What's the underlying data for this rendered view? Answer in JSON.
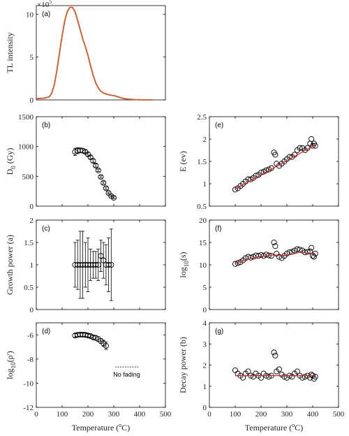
{
  "chart_data": [
    {
      "id": "a",
      "type": "line",
      "panel_label": "(a)",
      "ylabel": "TL intensity",
      "xlabel": "",
      "xlim": [
        0,
        500
      ],
      "ylim": [
        0,
        11
      ],
      "xticks": [],
      "yticks": [
        0,
        5,
        10
      ],
      "exponent_label": "×10",
      "exponent_power": "5",
      "series": [
        {
          "color": "#d2541e",
          "x": [
            0,
            30,
            50,
            60,
            70,
            80,
            90,
            100,
            110,
            120,
            130,
            140,
            150,
            160,
            170,
            180,
            190,
            200,
            210,
            220,
            230,
            240,
            250,
            260,
            270,
            280,
            290,
            300,
            310,
            320,
            340,
            360,
            380,
            400,
            420,
            450
          ],
          "y": [
            0.15,
            0.2,
            0.35,
            0.8,
            1.8,
            3.5,
            5.5,
            7.5,
            9.2,
            10.3,
            10.8,
            10.8,
            10.3,
            9.3,
            8.2,
            7.1,
            6.2,
            5.2,
            4.0,
            2.9,
            2.0,
            1.4,
            1.0,
            0.8,
            0.7,
            0.6,
            0.55,
            0.5,
            0.42,
            0.32,
            0.15,
            0.08,
            0.04,
            0.02,
            0.01,
            0.0
          ]
        }
      ]
    },
    {
      "id": "b",
      "type": "scatter",
      "panel_label": "(b)",
      "ylabel_main": "D",
      "ylabel_sub": "0",
      "ylabel_rest": " (Gy)",
      "xlabel": "",
      "xlim": [
        0,
        500
      ],
      "ylim": [
        0,
        1500
      ],
      "xticks": [
        0,
        100,
        200,
        300,
        400,
        500
      ],
      "show_xticklabels": false,
      "yticks": [
        0,
        500,
        1000,
        1500
      ],
      "series": [
        {
          "x": [
            150,
            160,
            170,
            180,
            190,
            200,
            210,
            220,
            230,
            240,
            250,
            260,
            270,
            280,
            290,
            300
          ],
          "y": [
            910,
            930,
            935,
            930,
            910,
            870,
            820,
            760,
            680,
            600,
            490,
            390,
            300,
            220,
            170,
            140
          ],
          "err": [
            60,
            50,
            40,
            35,
            30,
            30,
            25,
            25,
            25,
            20,
            20,
            20,
            20,
            15,
            15,
            15
          ]
        }
      ]
    },
    {
      "id": "c",
      "type": "scatter",
      "panel_label": "(c)",
      "ylabel": "Growth power (a)",
      "xlabel": "",
      "xlim": [
        0,
        500
      ],
      "ylim": [
        0,
        2
      ],
      "xticks": [
        0,
        100,
        200,
        300,
        400,
        500
      ],
      "show_xticklabels": false,
      "yticks": [
        0,
        0.5,
        1,
        1.5,
        2
      ],
      "series": [
        {
          "x": [
            150,
            160,
            170,
            180,
            190,
            200,
            210,
            220,
            230,
            240,
            250,
            260,
            270,
            280,
            290
          ],
          "y": [
            1,
            1,
            1,
            1,
            1,
            1,
            1,
            1,
            1,
            1,
            1.2,
            1.1,
            1,
            1,
            1
          ],
          "err": [
            0.5,
            0.55,
            0.75,
            0.75,
            0.5,
            0.6,
            0.35,
            0.3,
            0.3,
            0.35,
            0.35,
            0.4,
            0.45,
            0.6,
            0.8
          ]
        }
      ]
    },
    {
      "id": "d",
      "type": "scatter",
      "panel_label": "(d)",
      "ylabel_main": "log",
      "ylabel_sub": "10",
      "ylabel_rest": "(ρ')",
      "xlabel": "Temperature",
      "xlabel_unit_open": " (",
      "xlabel_sup": "o",
      "xlabel_unit_close": "C)",
      "xlim": [
        0,
        500
      ],
      "ylim": [
        -12,
        -5
      ],
      "xticks": [
        0,
        100,
        200,
        300,
        400,
        500
      ],
      "show_xticklabels": true,
      "yticks": [
        -12,
        -10,
        -8,
        -6
      ],
      "annotation": "No fading",
      "annotation_x": 350,
      "annotation_y": -8.65,
      "series": [
        {
          "x": [
            150,
            160,
            170,
            180,
            190,
            200,
            210,
            220,
            230,
            240,
            250,
            260,
            270
          ],
          "y": [
            -6.05,
            -6.0,
            -5.98,
            -5.98,
            -6.0,
            -6.05,
            -6.1,
            -6.2,
            -6.25,
            -6.35,
            -6.5,
            -6.7,
            -6.9
          ],
          "err": [
            0.15,
            0.15,
            0.15,
            0.15,
            0.15,
            0.15,
            0.15,
            0.15,
            0.2,
            0.2,
            0.2,
            0.25,
            0.3
          ]
        }
      ]
    },
    {
      "id": "e",
      "type": "scatter",
      "panel_label": "(e)",
      "ylabel": "E (ev)",
      "xlabel": "",
      "xlim": [
        0,
        500
      ],
      "ylim": [
        0.5,
        2.5
      ],
      "xticks": [
        0,
        100,
        200,
        300,
        400,
        500
      ],
      "show_xticklabels": false,
      "yticks": [
        0.5,
        1,
        1.5,
        2,
        2.5
      ],
      "fit": {
        "x": [
          100,
          410
        ],
        "y": [
          0.88,
          1.87
        ],
        "color": "#d92a2a"
      },
      "series": [
        {
          "x": [
            100,
            110,
            120,
            130,
            140,
            150,
            160,
            170,
            180,
            190,
            200,
            210,
            220,
            230,
            240,
            250,
            255,
            260,
            270,
            280,
            290,
            300,
            310,
            320,
            330,
            340,
            350,
            360,
            370,
            380,
            390,
            395,
            400,
            405,
            410
          ],
          "y": [
            0.87,
            0.9,
            0.95,
            1.0,
            1.05,
            1.1,
            1.1,
            1.13,
            1.18,
            1.2,
            1.25,
            1.27,
            1.3,
            1.32,
            1.35,
            1.7,
            1.65,
            1.45,
            1.4,
            1.45,
            1.5,
            1.55,
            1.6,
            1.6,
            1.65,
            1.75,
            1.8,
            1.8,
            1.75,
            1.8,
            1.9,
            2.0,
            1.85,
            1.9,
            1.85
          ]
        }
      ]
    },
    {
      "id": "f",
      "type": "scatter",
      "panel_label": "(f)",
      "ylabel_main": "log",
      "ylabel_sub": "10",
      "ylabel_rest": "(s)",
      "xlabel": "",
      "xlim": [
        0,
        500
      ],
      "ylim": [
        0,
        20
      ],
      "xticks": [
        0,
        100,
        200,
        300,
        400,
        500
      ],
      "show_xticklabels": false,
      "yticks": [
        0,
        5,
        10,
        15,
        20
      ],
      "fit": {
        "x": [
          100,
          150,
          200,
          250,
          300,
          350,
          410
        ],
        "y": [
          10.3,
          11.3,
          11.9,
          12.2,
          12.1,
          12.8,
          12.5
        ],
        "color": "#d92a2a"
      },
      "series": [
        {
          "x": [
            100,
            110,
            120,
            130,
            140,
            150,
            160,
            170,
            180,
            190,
            200,
            210,
            220,
            230,
            240,
            250,
            255,
            260,
            270,
            280,
            290,
            300,
            310,
            320,
            330,
            340,
            350,
            360,
            370,
            380,
            390,
            395,
            400,
            405,
            410
          ],
          "y": [
            10.2,
            10.4,
            10.6,
            11.0,
            11.5,
            11.8,
            11.6,
            11.8,
            12.1,
            12.0,
            12.2,
            12.0,
            12.3,
            12.1,
            12.0,
            15.0,
            14.2,
            12.5,
            11.8,
            11.5,
            12.0,
            12.5,
            12.8,
            12.9,
            13.2,
            13.5,
            13.4,
            13.2,
            12.8,
            12.9,
            13.0,
            13.8,
            12.0,
            11.8,
            12.5
          ]
        }
      ]
    },
    {
      "id": "g",
      "type": "scatter",
      "panel_label": "(g)",
      "ylabel": "Decay power (b)",
      "xlabel": "Temperature",
      "xlabel_unit_open": " (",
      "xlabel_sup": "o",
      "xlabel_unit_close": "C)",
      "xlim": [
        0,
        500
      ],
      "ylim": [
        0,
        4
      ],
      "xticks": [
        0,
        100,
        200,
        300,
        400,
        500
      ],
      "show_xticklabels": true,
      "yticks": [
        0,
        1,
        2,
        3,
        4
      ],
      "fit": {
        "x": [
          100,
          410
        ],
        "y": [
          1.5,
          1.5
        ],
        "color": "#d92a2a"
      },
      "series": [
        {
          "x": [
            100,
            110,
            120,
            130,
            140,
            150,
            160,
            170,
            180,
            190,
            200,
            210,
            220,
            230,
            240,
            250,
            255,
            260,
            270,
            280,
            290,
            300,
            310,
            320,
            330,
            340,
            350,
            360,
            370,
            380,
            390,
            395,
            400,
            405,
            410
          ],
          "y": [
            1.75,
            1.6,
            1.5,
            1.4,
            1.6,
            1.7,
            1.5,
            1.45,
            1.6,
            1.5,
            1.4,
            1.6,
            1.5,
            1.45,
            1.5,
            2.6,
            2.45,
            1.7,
            1.8,
            1.55,
            1.45,
            1.4,
            1.5,
            1.45,
            1.6,
            1.7,
            1.5,
            1.4,
            1.45,
            1.5,
            1.4,
            1.55,
            1.5,
            1.35,
            1.45
          ]
        }
      ]
    }
  ]
}
